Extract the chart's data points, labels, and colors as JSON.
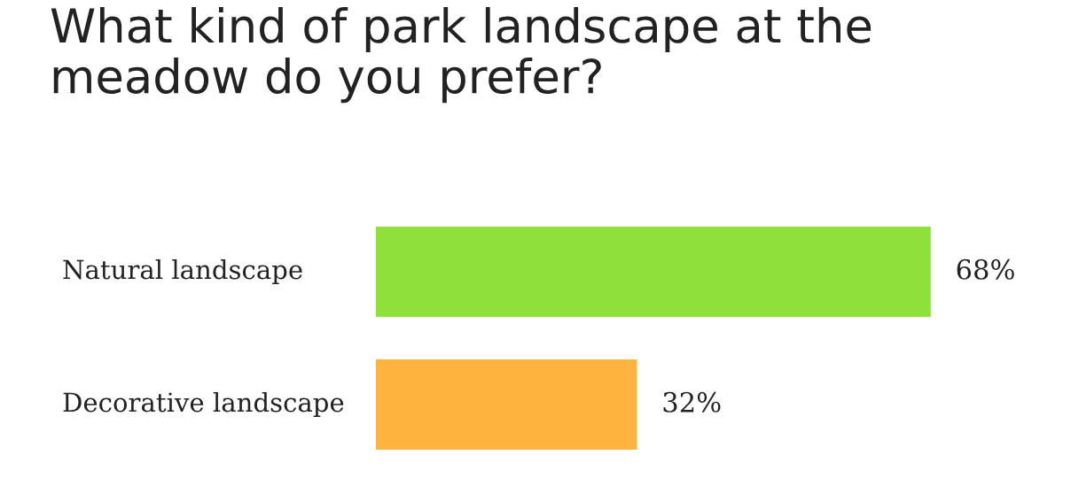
{
  "chart_data": {
    "type": "bar",
    "orientation": "horizontal",
    "title": "What kind of park landscape at the meadow do you prefer?",
    "categories": [
      "Natural landscape",
      "Decorative landscape"
    ],
    "values": [
      68,
      32
    ],
    "colors": [
      "#8ee03a",
      "#ffb43f"
    ],
    "value_labels": [
      "68%",
      "32%"
    ]
  }
}
